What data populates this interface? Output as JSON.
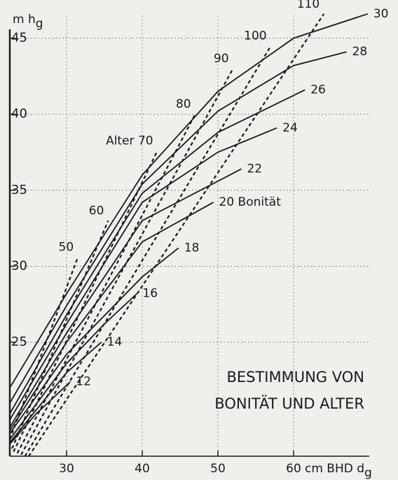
{
  "chart_data": {
    "type": "line",
    "y_label": "m h",
    "y_label_sub": "g",
    "x_label": "cm BHD d",
    "x_label_sub": "g",
    "title_lines": [
      "BESTIMMUNG VON",
      "BONITÄT UND ALTER"
    ],
    "xlim": [
      22.5,
      70
    ],
    "ylim": [
      17.5,
      46.5
    ],
    "xticks": [
      30,
      40,
      50,
      60
    ],
    "yticks": [
      25,
      30,
      35,
      40,
      45
    ],
    "grid": true,
    "color": "#1a1a1a",
    "series": [
      {
        "name": "12",
        "style": "solid",
        "x": [
          22.5,
          26,
          30.5
        ],
        "values": [
          18.3,
          20.3,
          22.4
        ]
      },
      {
        "name": "14",
        "style": "solid",
        "x": [
          22.5,
          30,
          34.6
        ],
        "values": [
          18.4,
          23.0,
          25.0
        ]
      },
      {
        "name": "16",
        "style": "solid",
        "x": [
          22.5,
          30,
          35,
          39.3
        ],
        "values": [
          18.6,
          23.6,
          26.2,
          28.2
        ]
      },
      {
        "name": "18",
        "style": "solid",
        "x": [
          22.5,
          30,
          40,
          44.8
        ],
        "values": [
          19.0,
          24.2,
          29.3,
          31.2
        ]
      },
      {
        "name": "20 Bonität",
        "style": "solid",
        "x": [
          22.5,
          30,
          40,
          49.4
        ],
        "values": [
          19.2,
          25.0,
          31.6,
          34.2
        ]
      },
      {
        "name": "22",
        "style": "solid",
        "x": [
          22.5,
          30,
          40,
          53.1
        ],
        "values": [
          19.4,
          25.6,
          33.0,
          36.4
        ]
      },
      {
        "name": "24",
        "style": "solid",
        "x": [
          22.5,
          30,
          40,
          50,
          57.8
        ],
        "values": [
          19.9,
          26.2,
          34.2,
          37.5,
          39.1
        ]
      },
      {
        "name": "26",
        "style": "solid",
        "x": [
          22.5,
          30,
          40,
          50,
          61.5
        ],
        "values": [
          20.3,
          26.8,
          34.8,
          38.8,
          41.6
        ]
      },
      {
        "name": "28",
        "style": "solid",
        "x": [
          22.5,
          30,
          40,
          50,
          60,
          67
        ],
        "values": [
          21.0,
          27.4,
          35.4,
          40.2,
          43.2,
          44.1
        ]
      },
      {
        "name": "30",
        "style": "solid",
        "x": [
          22.5,
          30,
          40,
          50,
          60,
          69.8
        ],
        "values": [
          22.0,
          28.2,
          36.0,
          41.5,
          45.0,
          46.6
        ]
      },
      {
        "name": "50",
        "style": "dashed",
        "x": [
          22.5,
          31.5
        ],
        "values": [
          18.6,
          30.6
        ]
      },
      {
        "name": "60",
        "style": "dashed",
        "x": [
          22.8,
          35.5
        ],
        "values": [
          18.0,
          33.0
        ]
      },
      {
        "name": "Alter 70",
        "style": "dashed",
        "x": [
          23,
          42
        ],
        "values": [
          17.8,
          37.6
        ]
      },
      {
        "name": "80",
        "style": "dashed",
        "x": [
          23.5,
          47
        ],
        "values": [
          17.7,
          40.0
        ]
      },
      {
        "name": "90",
        "style": "dashed",
        "x": [
          24,
          52
        ],
        "values": [
          17.6,
          43.0
        ]
      },
      {
        "name": "100",
        "style": "dashed",
        "x": [
          24.5,
          57
        ],
        "values": [
          17.5,
          44.5
        ]
      },
      {
        "name": "110",
        "style": "dashed",
        "x": [
          25,
          64
        ],
        "values": [
          17.5,
          46.6
        ]
      }
    ]
  }
}
